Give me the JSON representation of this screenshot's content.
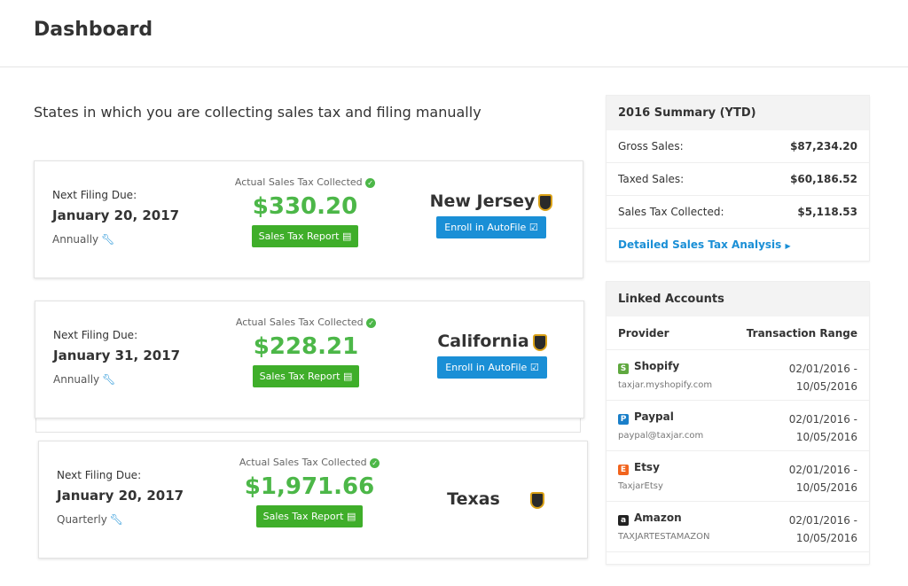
{
  "header": {
    "title": "Dashboard"
  },
  "subtitle": "States in which you are collecting sales tax and filing manually",
  "labels": {
    "next_filing": "Next Filing Due:",
    "collected": "Actual Sales Tax Collected",
    "report_button": "Sales Tax Report",
    "autofile_button": "Enroll in AutoFile"
  },
  "states": [
    {
      "name": "New Jersey",
      "due": "January 20, 2017",
      "frequency": "Annually",
      "amount": "$330.20",
      "autofile": true
    },
    {
      "name": "California",
      "due": "January 31, 2017",
      "frequency": "Annually",
      "amount": "$228.21",
      "autofile": true
    },
    {
      "name": "Texas",
      "due": "January 20, 2017",
      "frequency": "Quarterly",
      "amount": "$1,971.66",
      "autofile": false
    }
  ],
  "summary": {
    "title": "2016 Summary (YTD)",
    "rows": [
      {
        "label": "Gross Sales:",
        "value": "$87,234.20"
      },
      {
        "label": "Taxed Sales:",
        "value": "$60,186.52"
      },
      {
        "label": "Sales Tax Collected:",
        "value": "$5,118.53"
      }
    ],
    "link": "Detailed Sales Tax Analysis"
  },
  "linked": {
    "title": "Linked Accounts",
    "col_provider": "Provider",
    "col_range": "Transaction Range",
    "rows": [
      {
        "name": "Shopify",
        "sub": "taxjar.myshopify.com",
        "from": "02/01/2016 -",
        "to": "10/05/2016",
        "icon": "shopify-icon",
        "color": "#5fa83f"
      },
      {
        "name": "Paypal",
        "sub": "paypal@taxjar.com",
        "from": "02/01/2016 -",
        "to": "10/05/2016",
        "icon": "paypal-icon",
        "color": "#1a7fc9"
      },
      {
        "name": "Etsy",
        "sub": "TaxjarEtsy",
        "from": "02/01/2016 -",
        "to": "10/05/2016",
        "icon": "etsy-icon",
        "color": "#f1641e"
      },
      {
        "name": "Amazon",
        "sub": "TAXJARTESTAMAZON",
        "from": "02/01/2016 -",
        "to": "10/05/2016",
        "icon": "amazon-icon",
        "color": "#222222"
      }
    ]
  }
}
